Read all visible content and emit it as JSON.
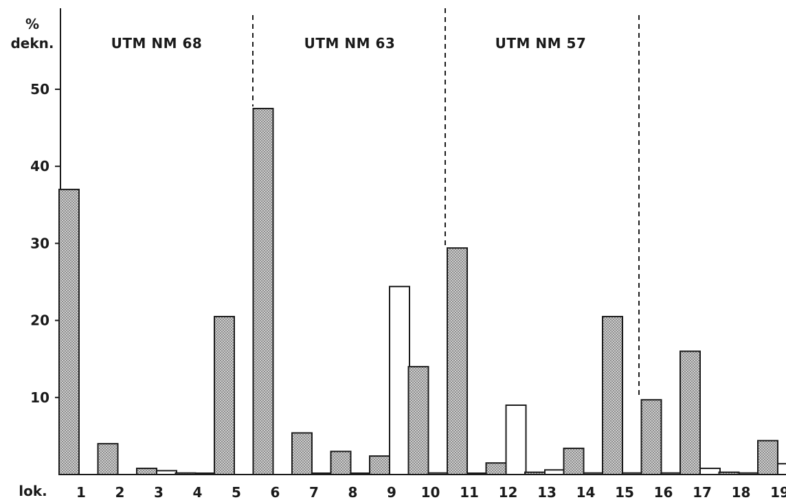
{
  "chart_data": {
    "type": "bar",
    "ylabel_line1": "%",
    "ylabel_line2": "dekn.",
    "xlabel": "lok.",
    "ylim": [
      0,
      55
    ],
    "yticks": [
      10,
      20,
      30,
      40,
      50
    ],
    "grid": false,
    "categories": [
      "1",
      "2",
      "3",
      "4",
      "5",
      "6",
      "7",
      "8",
      "9",
      "10",
      "11",
      "12",
      "13",
      "14",
      "15",
      "16",
      "17",
      "18",
      "19"
    ],
    "series": [
      {
        "style": "stippled",
        "values": [
          37,
          4,
          0.8,
          0.2,
          20.5,
          47.5,
          5.4,
          3.0,
          2.4,
          14.0,
          29.4,
          1.5,
          0.3,
          3.4,
          20.5,
          9.7,
          16.0,
          0.3,
          4.4
        ]
      },
      {
        "style": "open",
        "values": [
          0,
          0,
          0.5,
          0.1,
          0,
          0,
          0.1,
          0.1,
          24.4,
          0.2,
          0.1,
          9.0,
          0.6,
          0.2,
          0.2,
          0.2,
          0.8,
          0.2,
          1.4
        ]
      }
    ],
    "regions": [
      {
        "label": "UTM NM 68"
      },
      {
        "label": "UTM NM 63"
      },
      {
        "label": "UTM NM 57"
      }
    ],
    "colors": {
      "stipple_bg": "#c9c9c9",
      "stipple_dot": "#6a6a6a",
      "outline": "#1a1a1a",
      "open_fill": "#ffffff"
    }
  }
}
